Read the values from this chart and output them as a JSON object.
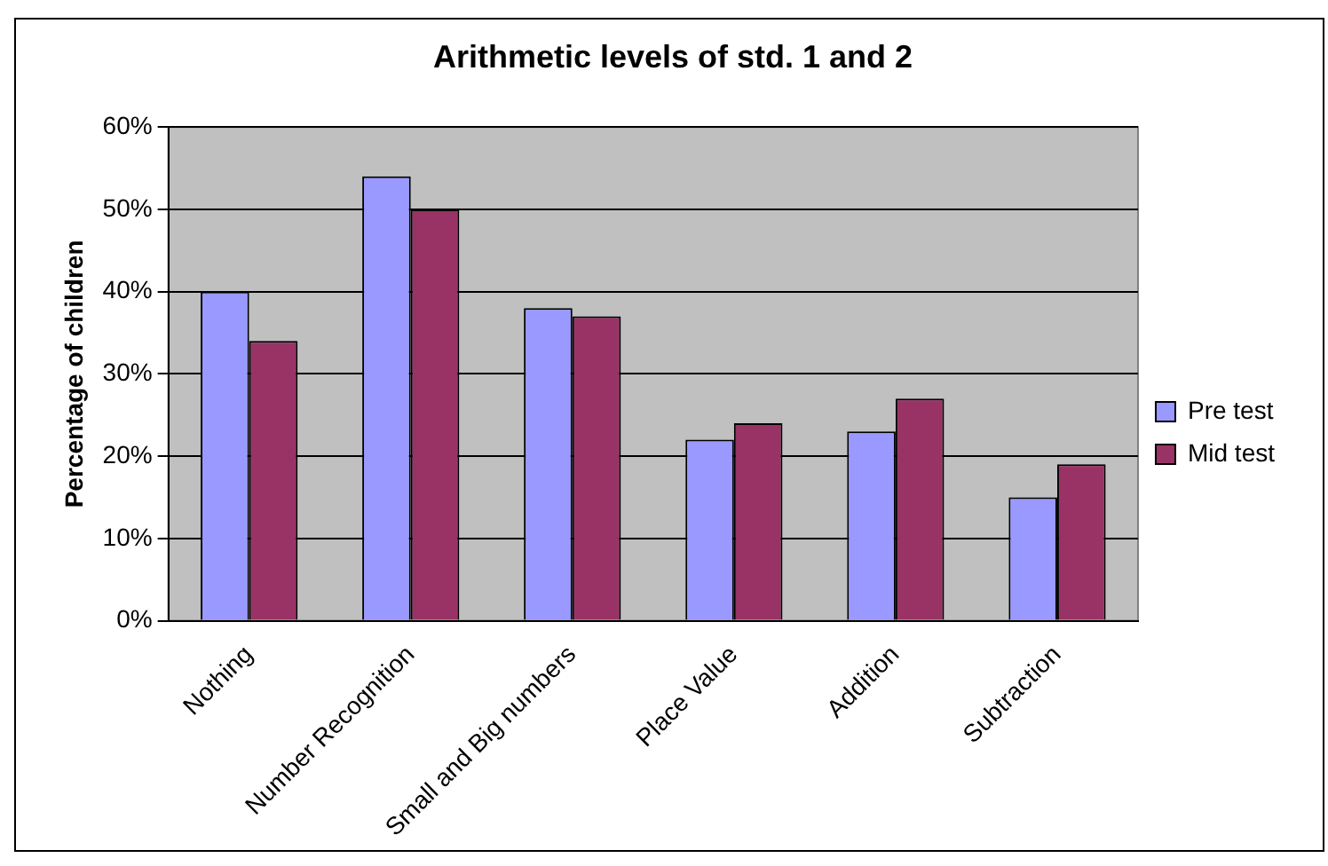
{
  "chart_data": {
    "type": "bar",
    "title": "Arithmetic levels of std. 1 and 2",
    "ylabel": "Percentage of children",
    "categories": [
      "Nothing",
      "Number Recognition",
      "Small and Big numbers",
      "Place Value",
      "Addition",
      "Subtraction"
    ],
    "series": [
      {
        "name": "Pre test",
        "color": "#9999ff",
        "values": [
          40,
          54,
          38,
          22,
          23,
          15
        ]
      },
      {
        "name": "Mid test",
        "color": "#993366",
        "values": [
          34,
          50,
          37,
          24,
          27,
          19
        ]
      }
    ],
    "ylim": [
      0,
      60
    ],
    "yticks": [
      {
        "value": 0,
        "label": "0%"
      },
      {
        "value": 10,
        "label": "10%"
      },
      {
        "value": 20,
        "label": "20%"
      },
      {
        "value": 30,
        "label": "30%"
      },
      {
        "value": 40,
        "label": "40%"
      },
      {
        "value": 50,
        "label": "50%"
      },
      {
        "value": 60,
        "label": "60%"
      }
    ],
    "grid": "y",
    "legend": "right"
  }
}
